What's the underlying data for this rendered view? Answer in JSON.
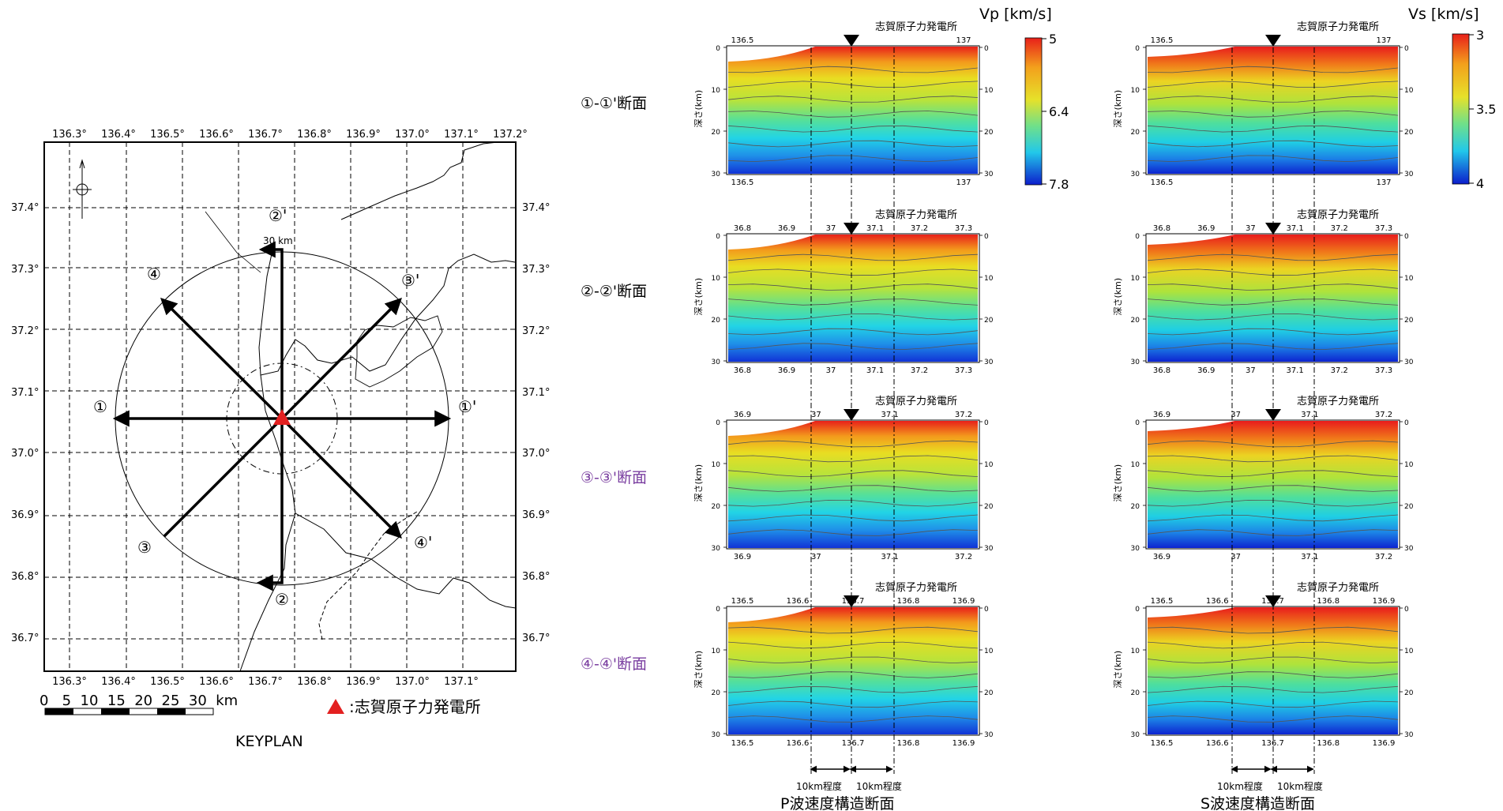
{
  "keyplan": {
    "top_lon": [
      "136.3°",
      "136.4°",
      "136.5°",
      "136.6°",
      "136.7°",
      "136.8°",
      "136.9°",
      "137.0°",
      "137.1°",
      "137.2°"
    ],
    "bottom_lon": [
      "136.3°",
      "136.4°",
      "136.5°",
      "136.6°",
      "136.7°",
      "136.8°",
      "136.9°",
      "137.0°",
      "137.1°"
    ],
    "lat": [
      "37.4°",
      "37.3°",
      "37.2°",
      "37.1°",
      "37.0°",
      "36.9°",
      "36.8°",
      "36.7°"
    ],
    "radius_label": "30 km",
    "scale_label": "0   5  10  15  20  25  30  km",
    "legend": ":志賀原子力発電所",
    "caption": "KEYPLAN",
    "line_labels": [
      "①",
      "①'",
      "②",
      "②'",
      "③",
      "③'",
      "④",
      "④'"
    ]
  },
  "sections": [
    {
      "label": "①-①'断面",
      "color": "#000000",
      "p_ticks": [
        "136.5",
        "137"
      ],
      "s_ticks": [
        "136.5",
        "137"
      ]
    },
    {
      "label": "②-②'断面",
      "color": "#000000",
      "p_ticks": [
        "36.8",
        "36.9",
        "37",
        "37.1",
        "37.2",
        "37.3"
      ],
      "s_ticks": [
        "36.8",
        "36.9",
        "37",
        "37.1",
        "37.2",
        "37.3"
      ]
    },
    {
      "label": "③-③'断面",
      "color": "#7a3ea0",
      "p_ticks": [
        "36.9",
        "37",
        "37.1",
        "37.2"
      ],
      "s_ticks": [
        "36.9",
        "37",
        "37.1",
        "37.2"
      ]
    },
    {
      "label": "④-④'断面",
      "color": "#7a3ea0",
      "p_ticks": [
        "136.5",
        "136.6",
        "136.7",
        "136.8",
        "136.9"
      ],
      "s_ticks": [
        "136.5",
        "136.6",
        "136.7",
        "136.8",
        "136.9"
      ]
    }
  ],
  "plant_label": "志賀原子力発電所",
  "depth_label": "深さ(km)",
  "depth_ticks": [
    "0",
    "10",
    "20",
    "30"
  ],
  "vp_title": "Vp [km/s]",
  "vs_title": "Vs [km/s]",
  "vp_scale": [
    "5",
    "6.4",
    "7.8"
  ],
  "vs_scale": [
    "3",
    "3.5",
    "4"
  ],
  "p_caption": "P波速度構造断面",
  "s_caption": "S波速度構造断面",
  "dist_label": "10km程度"
}
